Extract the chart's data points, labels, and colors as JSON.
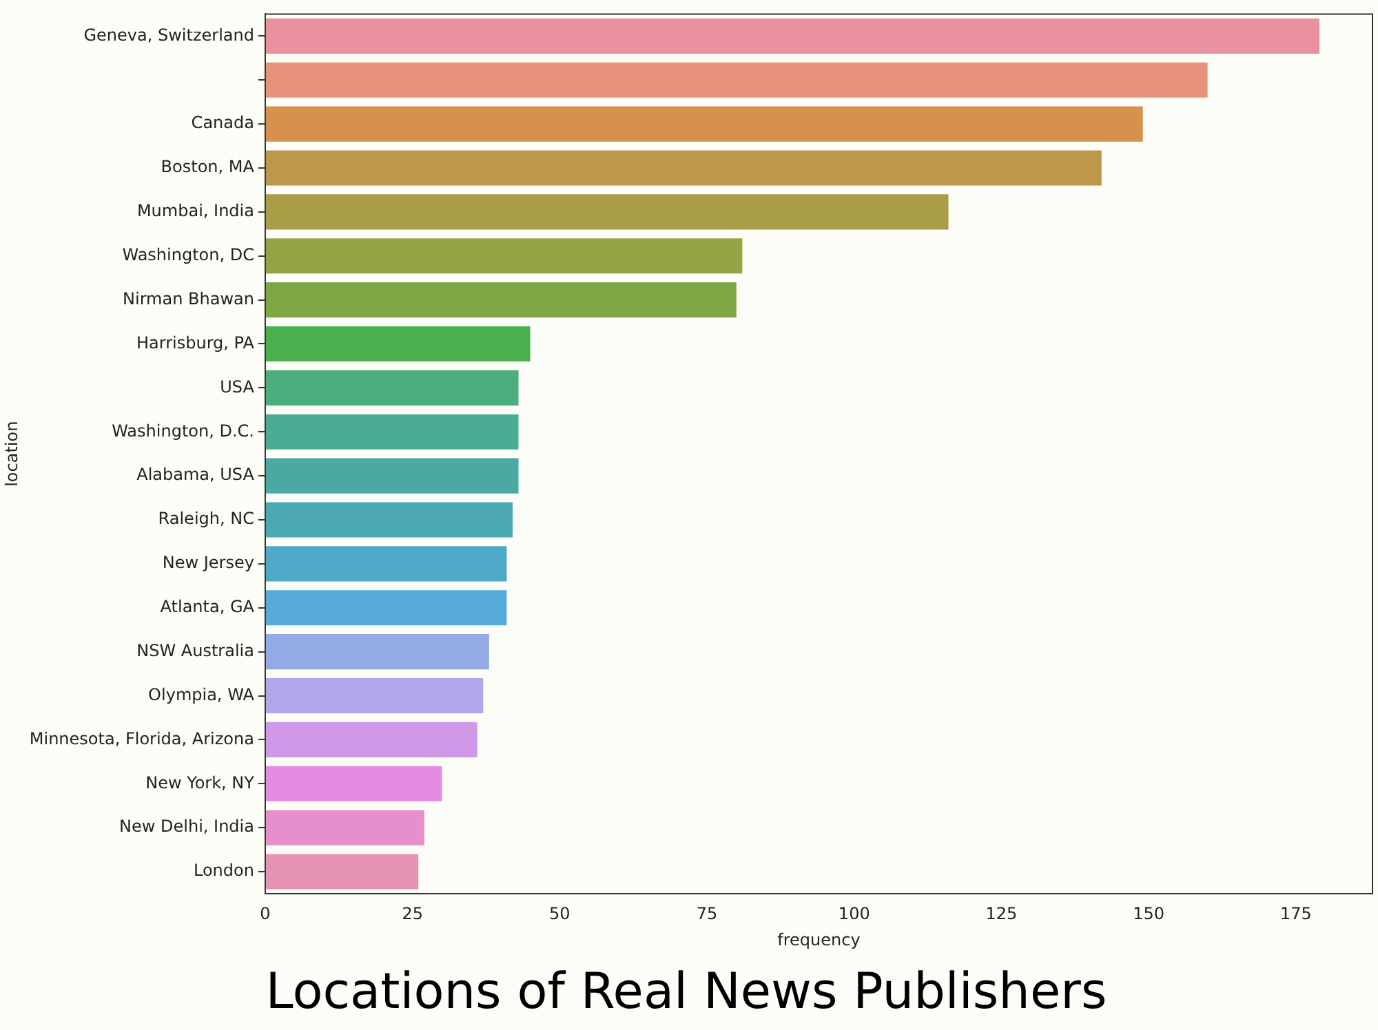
{
  "chart_data": {
    "type": "bar",
    "orientation": "horizontal",
    "title": "Locations of Real News Publishers",
    "xlabel": "frequency",
    "ylabel": "location",
    "categories": [
      "Geneva, Switzerland",
      null,
      "Canada",
      "Boston, MA",
      "Mumbai, India",
      "Washington, DC",
      "Nirman Bhawan",
      "Harrisburg, PA",
      "USA",
      "Washington, D.C.",
      "Alabama, USA",
      "Raleigh, NC",
      "New Jersey",
      "Atlanta, GA",
      "NSW Australia",
      "Olympia, WA",
      "Minnesota, Florida, Arizona",
      "New York, NY",
      "New Delhi, India",
      "London"
    ],
    "values": [
      179,
      160,
      149,
      142,
      116,
      81,
      80,
      45,
      43,
      43,
      43,
      42,
      41,
      41,
      38,
      37,
      36,
      30,
      27,
      26
    ],
    "colors": [
      "#e8919f",
      "#e7937c",
      "#d6924c",
      "#bd984a",
      "#aa9d47",
      "#93a444",
      "#7fa845",
      "#4ab04f",
      "#4bae7e",
      "#4aac94",
      "#4aa9a2",
      "#4ba9b3",
      "#4ea9c7",
      "#56abdc",
      "#94aae6",
      "#b2a5e9",
      "#cf99e8",
      "#e68be4",
      "#e78fcc",
      "#e794b4"
    ],
    "xlim": [
      0,
      188
    ],
    "xticks": [
      0,
      25,
      50,
      75,
      100,
      125,
      150,
      175
    ],
    "grid": false,
    "legend": false
  }
}
